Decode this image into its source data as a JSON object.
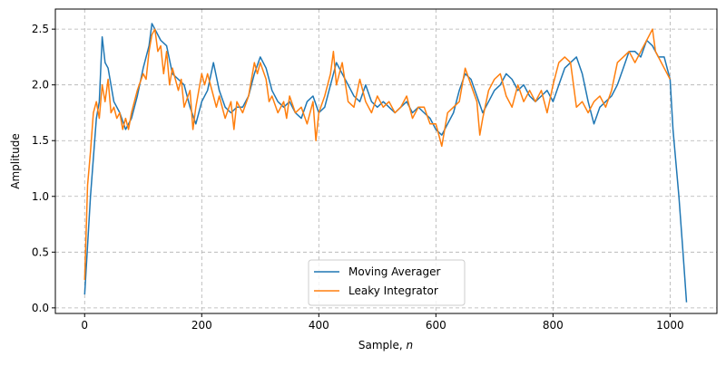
{
  "chart_data": {
    "type": "line",
    "title": "",
    "xlabel": "Sample, n",
    "ylabel": "Amplitude",
    "xlim": [
      -50,
      1080
    ],
    "ylim": [
      -0.05,
      2.68
    ],
    "xticks": [
      0,
      200,
      400,
      600,
      800,
      1000
    ],
    "yticks": [
      0.0,
      0.5,
      1.0,
      1.5,
      2.0,
      2.5
    ],
    "xtick_labels": [
      "0",
      "200",
      "400",
      "600",
      "800",
      "1000"
    ],
    "ytick_labels": [
      "0.0",
      "0.5",
      "1.0",
      "1.5",
      "2.0",
      "2.5"
    ],
    "grid": true,
    "legend_position": "bottom-center",
    "series": [
      {
        "name": "Moving Averager",
        "color": "#1f77b4",
        "x": [
          0,
          10,
          20,
          25,
          30,
          35,
          40,
          50,
          60,
          70,
          80,
          90,
          100,
          110,
          115,
          120,
          130,
          140,
          150,
          160,
          170,
          180,
          190,
          200,
          210,
          220,
          230,
          240,
          250,
          260,
          270,
          280,
          290,
          300,
          310,
          320,
          330,
          340,
          350,
          360,
          370,
          380,
          390,
          400,
          410,
          420,
          430,
          440,
          450,
          460,
          470,
          480,
          490,
          500,
          510,
          520,
          530,
          540,
          550,
          560,
          570,
          580,
          590,
          600,
          610,
          620,
          630,
          640,
          650,
          660,
          670,
          680,
          690,
          700,
          710,
          720,
          730,
          740,
          750,
          760,
          770,
          780,
          790,
          800,
          810,
          820,
          830,
          840,
          850,
          860,
          870,
          880,
          890,
          900,
          910,
          920,
          930,
          940,
          950,
          960,
          970,
          980,
          990,
          1000,
          1005,
          1015,
          1022,
          1028
        ],
        "y": [
          0.12,
          1.0,
          1.7,
          1.85,
          2.43,
          2.2,
          2.15,
          1.85,
          1.75,
          1.6,
          1.7,
          1.9,
          2.15,
          2.35,
          2.55,
          2.5,
          2.4,
          2.35,
          2.1,
          2.05,
          2.0,
          1.8,
          1.65,
          1.85,
          1.95,
          2.2,
          1.95,
          1.8,
          1.75,
          1.8,
          1.8,
          1.9,
          2.1,
          2.25,
          2.15,
          1.95,
          1.85,
          1.8,
          1.85,
          1.75,
          1.7,
          1.85,
          1.9,
          1.75,
          1.8,
          2.0,
          2.2,
          2.1,
          2.0,
          1.9,
          1.85,
          2.0,
          1.85,
          1.8,
          1.85,
          1.8,
          1.75,
          1.8,
          1.85,
          1.75,
          1.8,
          1.75,
          1.7,
          1.6,
          1.55,
          1.65,
          1.75,
          1.95,
          2.1,
          2.05,
          1.9,
          1.75,
          1.85,
          1.95,
          2.0,
          2.1,
          2.05,
          1.95,
          2.0,
          1.9,
          1.85,
          1.9,
          1.95,
          1.85,
          2.0,
          2.15,
          2.2,
          2.25,
          2.1,
          1.85,
          1.65,
          1.8,
          1.85,
          1.9,
          2.0,
          2.15,
          2.3,
          2.3,
          2.25,
          2.4,
          2.35,
          2.25,
          2.25,
          2.05,
          1.6,
          1.0,
          0.5,
          0.05
        ]
      },
      {
        "name": "Leaky Integrator",
        "color": "#ff7f0e",
        "x": [
          0,
          5,
          10,
          15,
          20,
          25,
          30,
          35,
          40,
          45,
          50,
          55,
          60,
          65,
          70,
          75,
          80,
          90,
          100,
          105,
          110,
          115,
          120,
          125,
          130,
          135,
          140,
          145,
          150,
          160,
          165,
          170,
          180,
          185,
          190,
          200,
          205,
          210,
          220,
          225,
          230,
          240,
          250,
          255,
          260,
          270,
          280,
          290,
          295,
          300,
          310,
          315,
          320,
          330,
          340,
          345,
          350,
          360,
          370,
          380,
          390,
          395,
          400,
          410,
          420,
          425,
          430,
          440,
          450,
          460,
          470,
          480,
          490,
          500,
          510,
          520,
          530,
          540,
          550,
          560,
          570,
          580,
          590,
          600,
          605,
          610,
          620,
          630,
          640,
          650,
          660,
          670,
          675,
          680,
          690,
          700,
          710,
          720,
          730,
          740,
          750,
          760,
          770,
          780,
          790,
          800,
          810,
          820,
          830,
          840,
          850,
          860,
          870,
          880,
          890,
          900,
          910,
          920,
          930,
          940,
          950,
          960,
          970,
          975,
          980,
          990,
          1000
        ],
        "y": [
          0.25,
          1.1,
          1.4,
          1.75,
          1.85,
          1.7,
          2.0,
          1.85,
          2.05,
          1.75,
          1.8,
          1.7,
          1.75,
          1.6,
          1.7,
          1.6,
          1.75,
          1.95,
          2.1,
          2.05,
          2.3,
          2.45,
          2.5,
          2.3,
          2.35,
          2.1,
          2.3,
          2.0,
          2.15,
          1.95,
          2.05,
          1.8,
          1.95,
          1.6,
          1.8,
          2.1,
          2.0,
          2.1,
          1.9,
          1.8,
          1.9,
          1.7,
          1.85,
          1.6,
          1.85,
          1.75,
          1.9,
          2.2,
          2.1,
          2.2,
          2.05,
          1.85,
          1.9,
          1.75,
          1.85,
          1.7,
          1.9,
          1.75,
          1.8,
          1.65,
          1.85,
          1.5,
          1.75,
          1.9,
          2.1,
          2.3,
          2.0,
          2.2,
          1.85,
          1.8,
          2.05,
          1.85,
          1.75,
          1.9,
          1.8,
          1.85,
          1.75,
          1.8,
          1.9,
          1.7,
          1.8,
          1.8,
          1.65,
          1.65,
          1.55,
          1.45,
          1.75,
          1.8,
          1.85,
          2.15,
          2.0,
          1.85,
          1.55,
          1.7,
          1.95,
          2.05,
          2.1,
          1.9,
          1.8,
          2.0,
          1.85,
          1.95,
          1.85,
          1.95,
          1.75,
          2.0,
          2.2,
          2.25,
          2.2,
          1.8,
          1.85,
          1.75,
          1.85,
          1.9,
          1.8,
          1.95,
          2.2,
          2.25,
          2.3,
          2.2,
          2.3,
          2.4,
          2.5,
          2.3,
          2.25,
          2.15,
          2.05
        ]
      }
    ]
  }
}
